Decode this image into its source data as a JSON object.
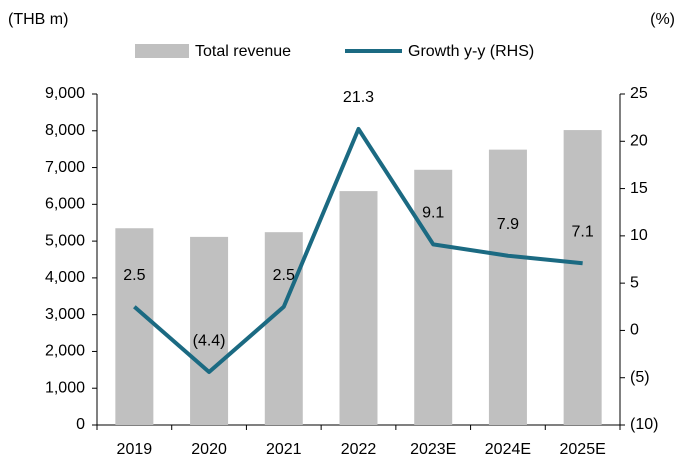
{
  "chart_data": {
    "type": "bar",
    "y_label": "(THB m)",
    "y2_label": "(%)",
    "categories": [
      "2019",
      "2020",
      "2021",
      "2022",
      "2023E",
      "2024E",
      "2025E"
    ],
    "series": [
      {
        "name": "Total revenue",
        "type": "bar",
        "axis": "y",
        "color": "#c0c0c0",
        "values": [
          5350,
          5115,
          5243,
          6360,
          6939,
          7487,
          8019
        ]
      },
      {
        "name": "Growth y-y (RHS)",
        "type": "line",
        "axis": "y2",
        "color": "#1b6a82",
        "values": [
          2.5,
          -4.4,
          2.5,
          21.3,
          9.1,
          7.9,
          7.1
        ],
        "value_labels": [
          "2.5",
          "(4.4)",
          "2.5",
          "21.3",
          "9.1",
          "7.9",
          "7.1"
        ]
      }
    ],
    "ylim": [
      0,
      9000
    ],
    "yticks": [
      0,
      {
        "value": 1000,
        "label": "1,000"
      },
      {
        "value": 2000,
        "label": "2,000"
      },
      {
        "value": 3000,
        "label": "3,000"
      },
      {
        "value": 4000,
        "label": "4,000"
      },
      {
        "value": 5000,
        "label": "5,000"
      },
      {
        "value": 6000,
        "label": "6,000"
      },
      {
        "value": 7000,
        "label": "7,000"
      },
      {
        "value": 8000,
        "label": "8,000"
      },
      {
        "value": 9000,
        "label": "9,000"
      }
    ],
    "y2lim": [
      -10,
      25
    ],
    "y2ticks": [
      {
        "value": -10,
        "label": "(10)"
      },
      {
        "value": -5,
        "label": "(5)"
      },
      0,
      5,
      10,
      15,
      20,
      25
    ],
    "grid": false,
    "legend": "top"
  }
}
